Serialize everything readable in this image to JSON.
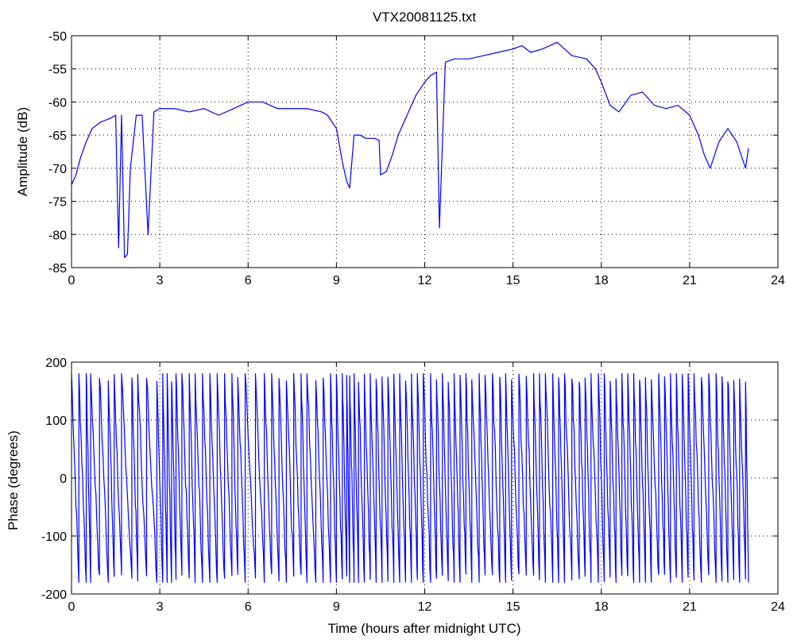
{
  "chart_data": [
    {
      "type": "line",
      "title": "VTX20081125.txt",
      "xlabel": "",
      "ylabel": "Amplitude (dB)",
      "xlim": [
        0,
        24
      ],
      "ylim": [
        -85,
        -50
      ],
      "xticks": [
        "0",
        "3",
        "6",
        "9",
        "12",
        "15",
        "18",
        "21",
        "24"
      ],
      "yticks": [
        "-50",
        "-55",
        "-60",
        "-65",
        "-70",
        "-75",
        "-80",
        "-85"
      ],
      "grid": true,
      "line_color": "#0000ff",
      "series": [
        {
          "x": [
            0,
            0.15,
            0.3,
            0.5,
            0.7,
            1.0,
            1.3,
            1.5,
            1.6,
            1.7,
            1.8,
            1.9,
            2.0,
            2.2,
            2.4,
            2.6,
            2.8,
            3.0,
            3.5,
            4.0,
            4.5,
            5.0,
            5.5,
            6.0,
            6.5,
            7.0,
            7.5,
            8.0,
            8.5,
            8.7,
            9.0,
            9.2,
            9.35,
            9.45,
            9.6,
            9.8,
            10.0,
            10.3,
            10.45,
            10.5,
            10.7,
            10.9,
            11.1,
            11.4,
            11.7,
            12.0,
            12.2,
            12.4,
            12.5,
            12.7,
            13.0,
            13.5,
            14.0,
            14.5,
            15.0,
            15.3,
            15.6,
            16.0,
            16.5,
            17.0,
            17.5,
            17.8,
            18.0,
            18.3,
            18.6,
            19.0,
            19.4,
            19.8,
            20.2,
            20.6,
            21.0,
            21.3,
            21.5,
            21.7,
            22.0,
            22.3,
            22.6,
            22.9,
            23.0
          ],
          "y": [
            -72.5,
            -71,
            -68.5,
            -66,
            -64,
            -63,
            -62.5,
            -62,
            -82,
            -62,
            -83.5,
            -83,
            -70,
            -62,
            -62,
            -80,
            -61.5,
            -61,
            -61,
            -61.5,
            -61,
            -62,
            -61,
            -60,
            -60,
            -61,
            -61,
            -61,
            -61.5,
            -62,
            -64,
            -69,
            -72,
            -73,
            -65,
            -65,
            -65.5,
            -65.5,
            -65.8,
            -71,
            -70.5,
            -68,
            -65,
            -62,
            -59,
            -57,
            -56,
            -55.5,
            -79,
            -54,
            -53.5,
            -53.5,
            -53,
            -52.5,
            -52,
            -51.5,
            -52.5,
            -52,
            -51,
            -53,
            -53.5,
            -55,
            -57,
            -60.5,
            -61.5,
            -59,
            -58.5,
            -60.5,
            -61,
            -60.5,
            -62,
            -65,
            -68,
            -70,
            -66,
            -64,
            -66,
            -70,
            -67
          ]
        }
      ]
    },
    {
      "type": "line",
      "title": "",
      "xlabel": "Time (hours after midnight UTC)",
      "ylabel": "Phase (degrees)",
      "xlim": [
        0,
        24
      ],
      "ylim": [
        -200,
        200
      ],
      "xticks": [
        "0",
        "3",
        "6",
        "9",
        "12",
        "15",
        "18",
        "21",
        "24"
      ],
      "yticks": [
        "200",
        "100",
        "0",
        "-100",
        "-200"
      ],
      "grid": true,
      "line_color": "#0000ff",
      "series": [
        {
          "wrap_starts": [
            0.0,
            0.25,
            0.5,
            0.65,
            0.95,
            1.25,
            1.45,
            1.7,
            2.05,
            2.25,
            2.55,
            2.9,
            3.1,
            3.25,
            3.4,
            3.55,
            3.75,
            4.0,
            4.2,
            4.45,
            4.7,
            4.95,
            5.2,
            5.45,
            5.65,
            5.9,
            6.25,
            6.55,
            6.8,
            7.05,
            7.3,
            7.55,
            7.8,
            8.0,
            8.3,
            8.55,
            8.8,
            9.0,
            9.2,
            9.35,
            9.45,
            9.6,
            9.75,
            9.95,
            10.15,
            10.35,
            10.55,
            10.75,
            10.95,
            11.15,
            11.35,
            11.55,
            11.75,
            11.95,
            12.2,
            12.4,
            12.6,
            12.8,
            13.0,
            13.2,
            13.4,
            13.6,
            13.85,
            14.05,
            14.3,
            14.55,
            14.75,
            14.95,
            15.2,
            15.45,
            15.7,
            15.9,
            16.1,
            16.35,
            16.55,
            16.75,
            17.0,
            17.25,
            17.45,
            17.65,
            17.9,
            18.1,
            18.3,
            18.5,
            18.7,
            18.9,
            19.1,
            19.3,
            19.5,
            19.7,
            19.95,
            20.15,
            20.35,
            20.55,
            20.75,
            20.95,
            21.15,
            21.4,
            21.65,
            21.9,
            22.1,
            22.3,
            22.5,
            22.7,
            22.9
          ],
          "x_end": 23.0,
          "y_range": [
            -180,
            180
          ]
        }
      ]
    }
  ]
}
